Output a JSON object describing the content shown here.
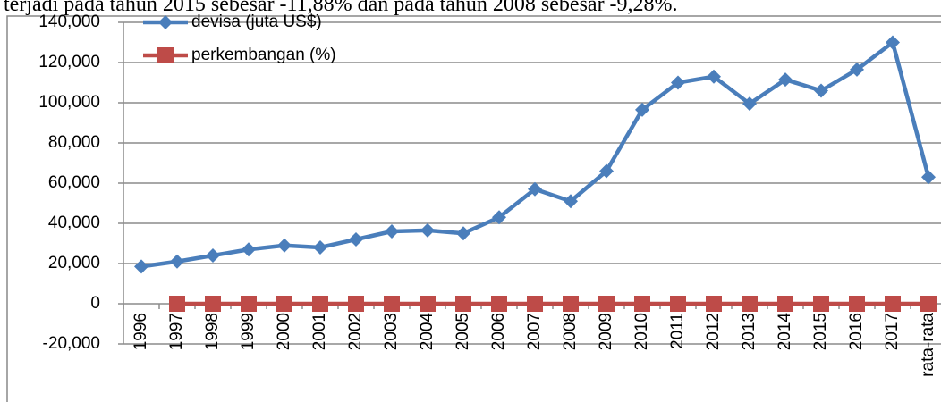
{
  "intro_text": "terjadi pada tahun 2015 sebesar -11,88% dan pada tahun 2008 sebesar -9,28%.",
  "chart_data": {
    "type": "line",
    "categories": [
      "1996",
      "1997",
      "1998",
      "1999",
      "2000",
      "2001",
      "2002",
      "2003",
      "2004",
      "2005",
      "2006",
      "2007",
      "2008",
      "2009",
      "2010",
      "2011",
      "2012",
      "2013",
      "2014",
      "2015",
      "2016",
      "2017",
      "rata-rata"
    ],
    "series": [
      {
        "name": "devisa (juta US$)",
        "color": "#4a7ebb",
        "marker": "diamond",
        "values": [
          18500,
          21000,
          24000,
          27000,
          29000,
          28000,
          32000,
          36000,
          36500,
          35000,
          43000,
          57000,
          51000,
          66000,
          96500,
          110000,
          113000,
          99500,
          111500,
          106000,
          116500,
          130000,
          63000
        ]
      },
      {
        "name": "perkembangan (%)",
        "color": "#be4b48",
        "marker": "square",
        "values": [
          null,
          0,
          0,
          0,
          0,
          0,
          0,
          0,
          0,
          0,
          0,
          0,
          0,
          0,
          0,
          0,
          0,
          0,
          0,
          0,
          0,
          0,
          0
        ]
      }
    ],
    "ylim": [
      -20000,
      140000
    ],
    "yticks": [
      {
        "value": -20000,
        "label": "-20,000"
      },
      0,
      {
        "value": 20000,
        "label": "20,000"
      },
      {
        "value": 40000,
        "label": "40,000"
      },
      {
        "value": 60000,
        "label": "60,000"
      },
      {
        "value": 80000,
        "label": "80,000"
      },
      {
        "value": 100000,
        "label": "100,000"
      },
      {
        "value": 120000,
        "label": "120,000"
      },
      {
        "value": 140000,
        "label": "140,000"
      }
    ],
    "grid": true,
    "legend": "top-left"
  }
}
